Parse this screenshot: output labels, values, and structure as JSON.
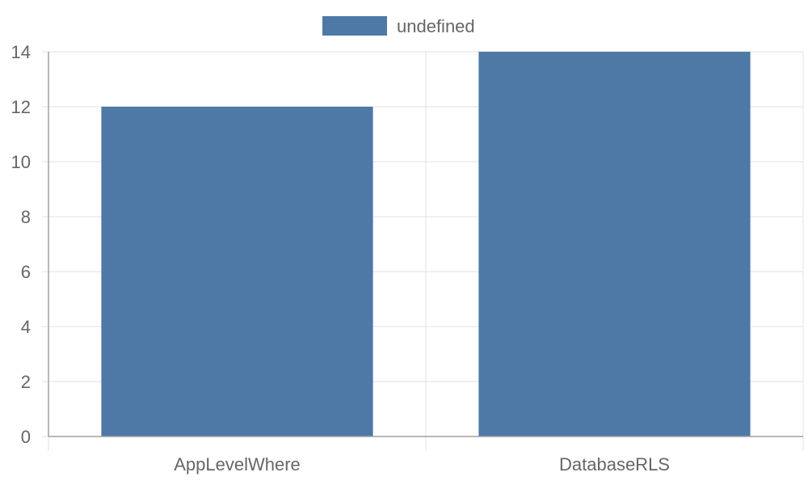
{
  "chart_data": {
    "type": "bar",
    "categories": [
      "AppLevelWhere",
      "DatabaseRLS"
    ],
    "series": [
      {
        "name": "undefined",
        "values": [
          12,
          14
        ],
        "color": "#4e79a7"
      }
    ],
    "ylim": [
      0,
      14
    ],
    "y_ticks": [
      0,
      2,
      4,
      6,
      8,
      10,
      12,
      14
    ],
    "y_tick_labels": [
      "0",
      "2",
      "4",
      "6",
      "8",
      "10",
      "12",
      "14"
    ],
    "grid": true,
    "legend_position": "top-center",
    "gridline_color": "#e0e0e0",
    "axis_color": "#a0a0a0",
    "text_color": "#666666"
  }
}
